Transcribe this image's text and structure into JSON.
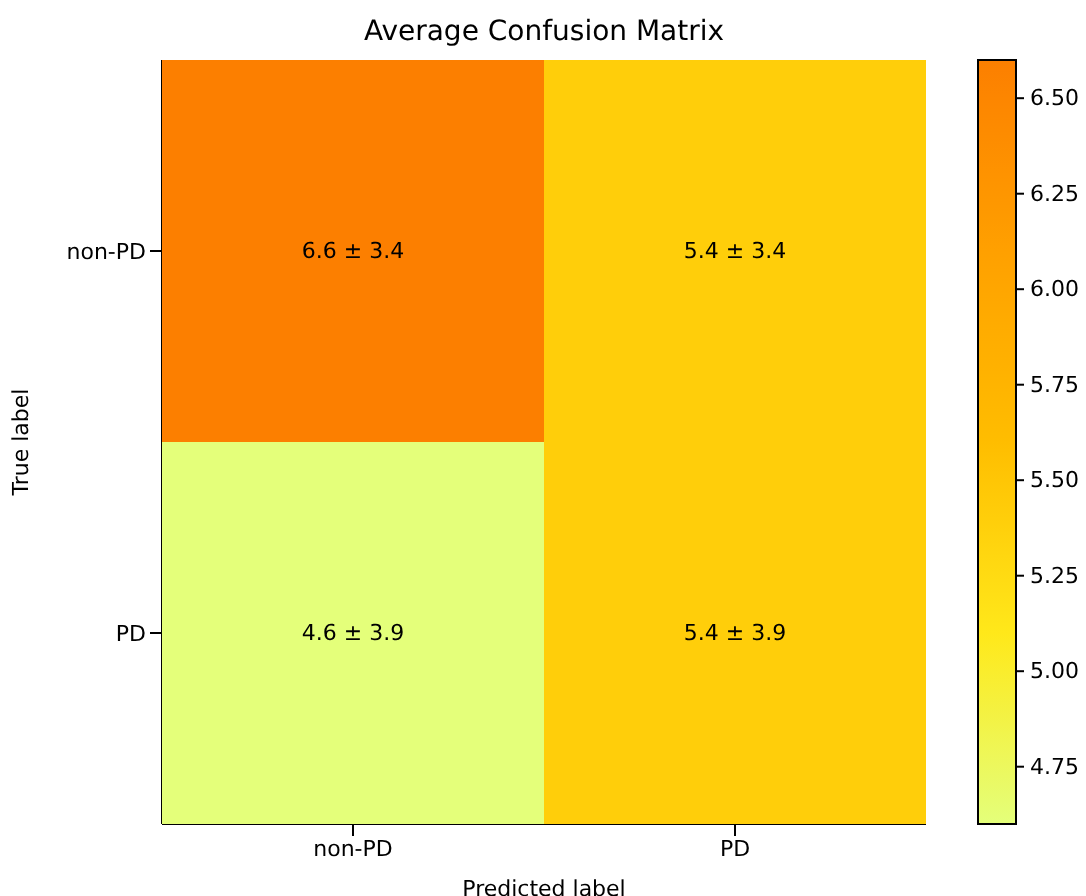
{
  "chart_data": {
    "type": "heatmap",
    "title": "Average Confusion Matrix",
    "xlabel": "Predicted label",
    "ylabel": "True label",
    "categories": [
      "non-PD",
      "PD"
    ],
    "y_categories": [
      "non-PD",
      "PD"
    ],
    "cells": [
      [
        6.6,
        5.4
      ],
      [
        4.6,
        5.4
      ]
    ],
    "cell_labels": [
      [
        "6.6 ± 3.4",
        "5.4 ± 3.4"
      ],
      [
        "4.6 ± 3.9",
        "5.4 ± 3.9"
      ]
    ],
    "clim": [
      4.6,
      6.6
    ],
    "cticks": [
      4.75,
      {
        "value": 5.0,
        "label": "5.00"
      },
      5.25,
      {
        "value": 5.5,
        "label": "5.50"
      },
      5.75,
      {
        "value": 6.0,
        "label": "6.00"
      },
      6.25,
      {
        "value": 6.5,
        "label": "6.50"
      }
    ]
  }
}
